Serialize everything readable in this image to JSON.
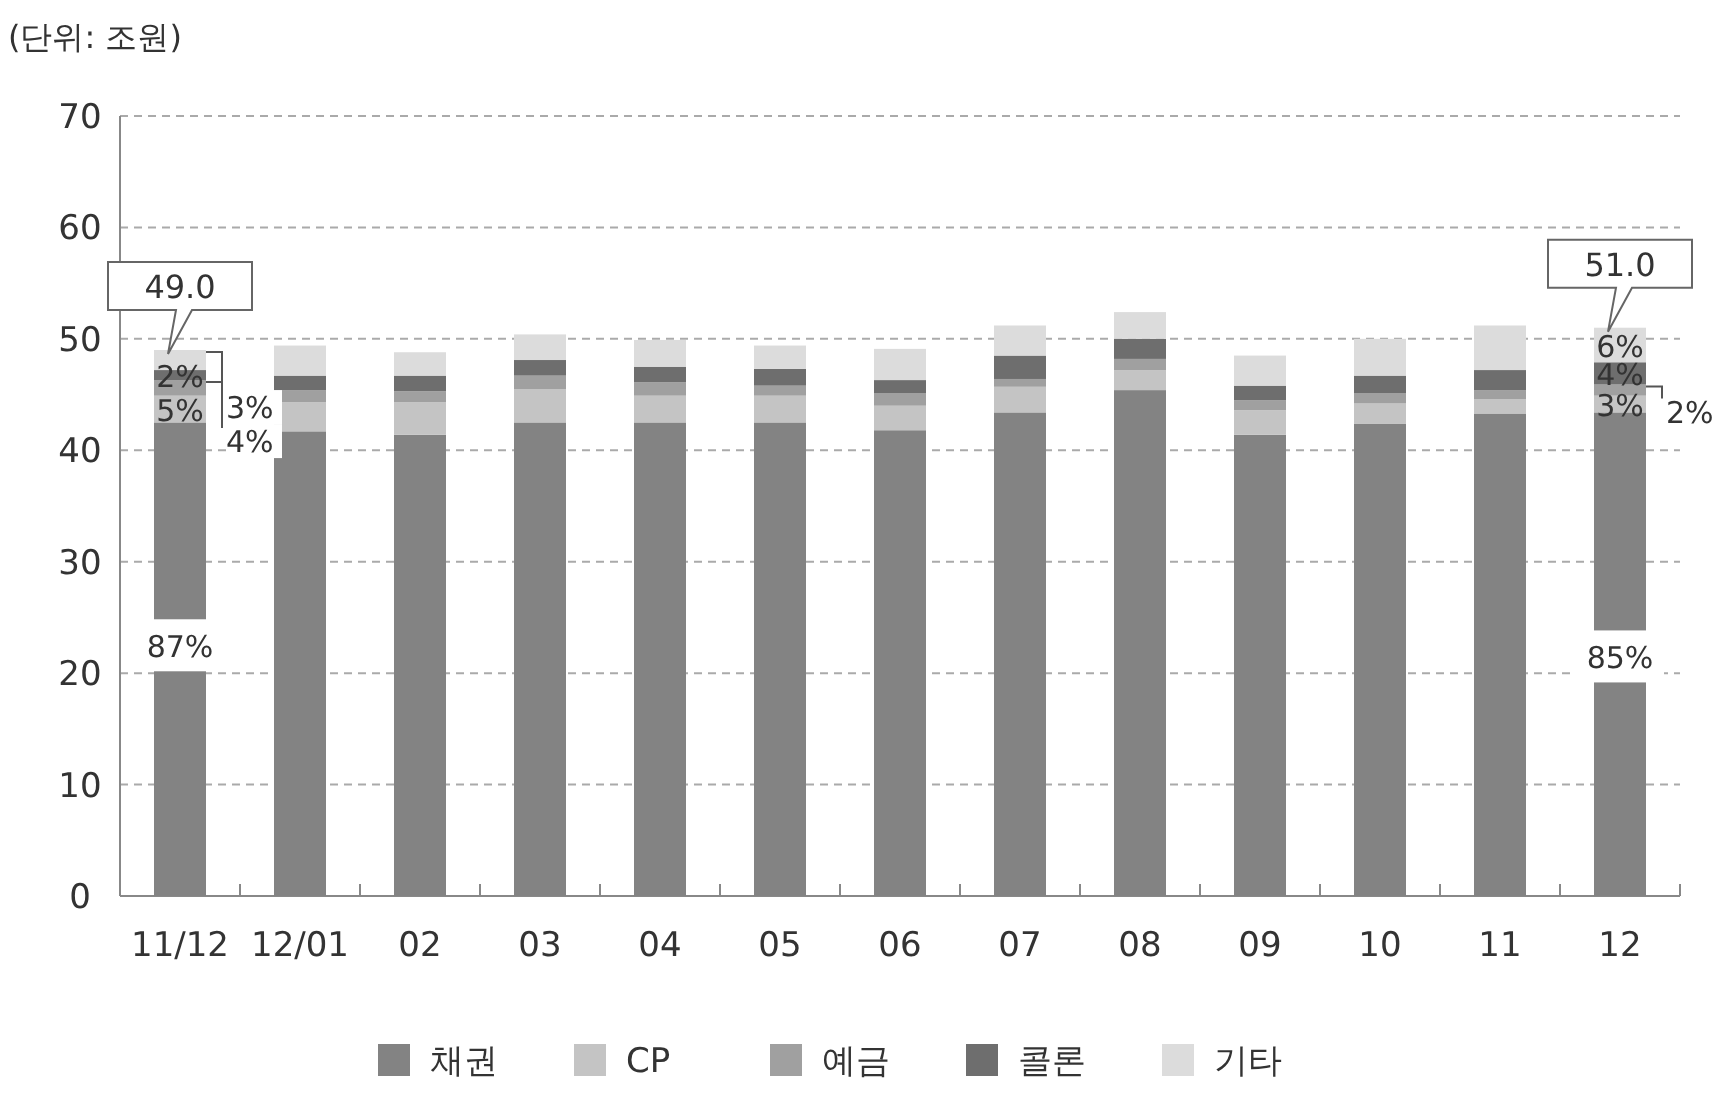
{
  "chart_data": {
    "type": "bar",
    "stacked": true,
    "ylabel": "(단위: 조원)",
    "categories": [
      "11/12",
      "12/01",
      "02",
      "03",
      "04",
      "05",
      "06",
      "07",
      "08",
      "09",
      "10",
      "11",
      "12"
    ],
    "series": [
      {
        "name": "채권",
        "color": "#838383",
        "values": [
          42.5,
          41.7,
          41.4,
          42.5,
          42.5,
          42.5,
          41.8,
          43.4,
          45.4,
          41.4,
          42.4,
          43.3,
          43.4
        ]
      },
      {
        "name": "CP",
        "color": "#c4c4c4",
        "values": [
          2.4,
          2.6,
          2.9,
          3.0,
          2.4,
          2.4,
          2.2,
          2.3,
          1.8,
          2.2,
          1.8,
          1.3,
          1.5
        ]
      },
      {
        "name": "예금",
        "color": "#a0a0a0",
        "values": [
          1.4,
          1.1,
          1.0,
          1.2,
          1.2,
          0.9,
          1.1,
          0.7,
          1.0,
          0.9,
          0.9,
          0.8,
          1.0
        ]
      },
      {
        "name": "콜론",
        "color": "#6e6e6e",
        "values": [
          0.9,
          1.3,
          1.4,
          1.4,
          1.4,
          1.5,
          1.2,
          2.1,
          1.8,
          1.3,
          1.6,
          1.8,
          2.0
        ]
      },
      {
        "name": "기타",
        "color": "#dcdcdc",
        "values": [
          1.8,
          2.7,
          2.1,
          2.3,
          2.4,
          2.1,
          2.8,
          2.7,
          2.4,
          2.7,
          3.3,
          4.0,
          3.1
        ]
      }
    ],
    "totals": [
      "49.0",
      null,
      null,
      null,
      null,
      null,
      null,
      null,
      null,
      null,
      null,
      null,
      "51.0"
    ],
    "annotations": [
      {
        "text": "87%",
        "x": "11/12",
        "y": 22.5
      },
      {
        "text": "5%",
        "x": "11/12",
        "y": 44.9
      },
      {
        "text": "3%",
        "x": "11/12",
        "y": 46.3
      },
      {
        "text": "2%",
        "x": "11/12",
        "y": 47.2
      },
      {
        "text": "4%",
        "x": "11/12",
        "y": 49.0
      },
      {
        "text": "85%",
        "x": "12",
        "y": 21.5
      },
      {
        "text": "3%",
        "x": "12",
        "y": 44.9
      },
      {
        "text": "2%",
        "x": "12",
        "y": 45.9
      },
      {
        "text": "4%",
        "x": "12",
        "y": 47.9
      },
      {
        "text": "6%",
        "x": "12",
        "y": 51.0
      }
    ],
    "ylim": [
      0,
      70
    ],
    "yticks": [
      0,
      10,
      20,
      30,
      40,
      50,
      60,
      70
    ],
    "grid": "y",
    "legend": "bottom"
  }
}
